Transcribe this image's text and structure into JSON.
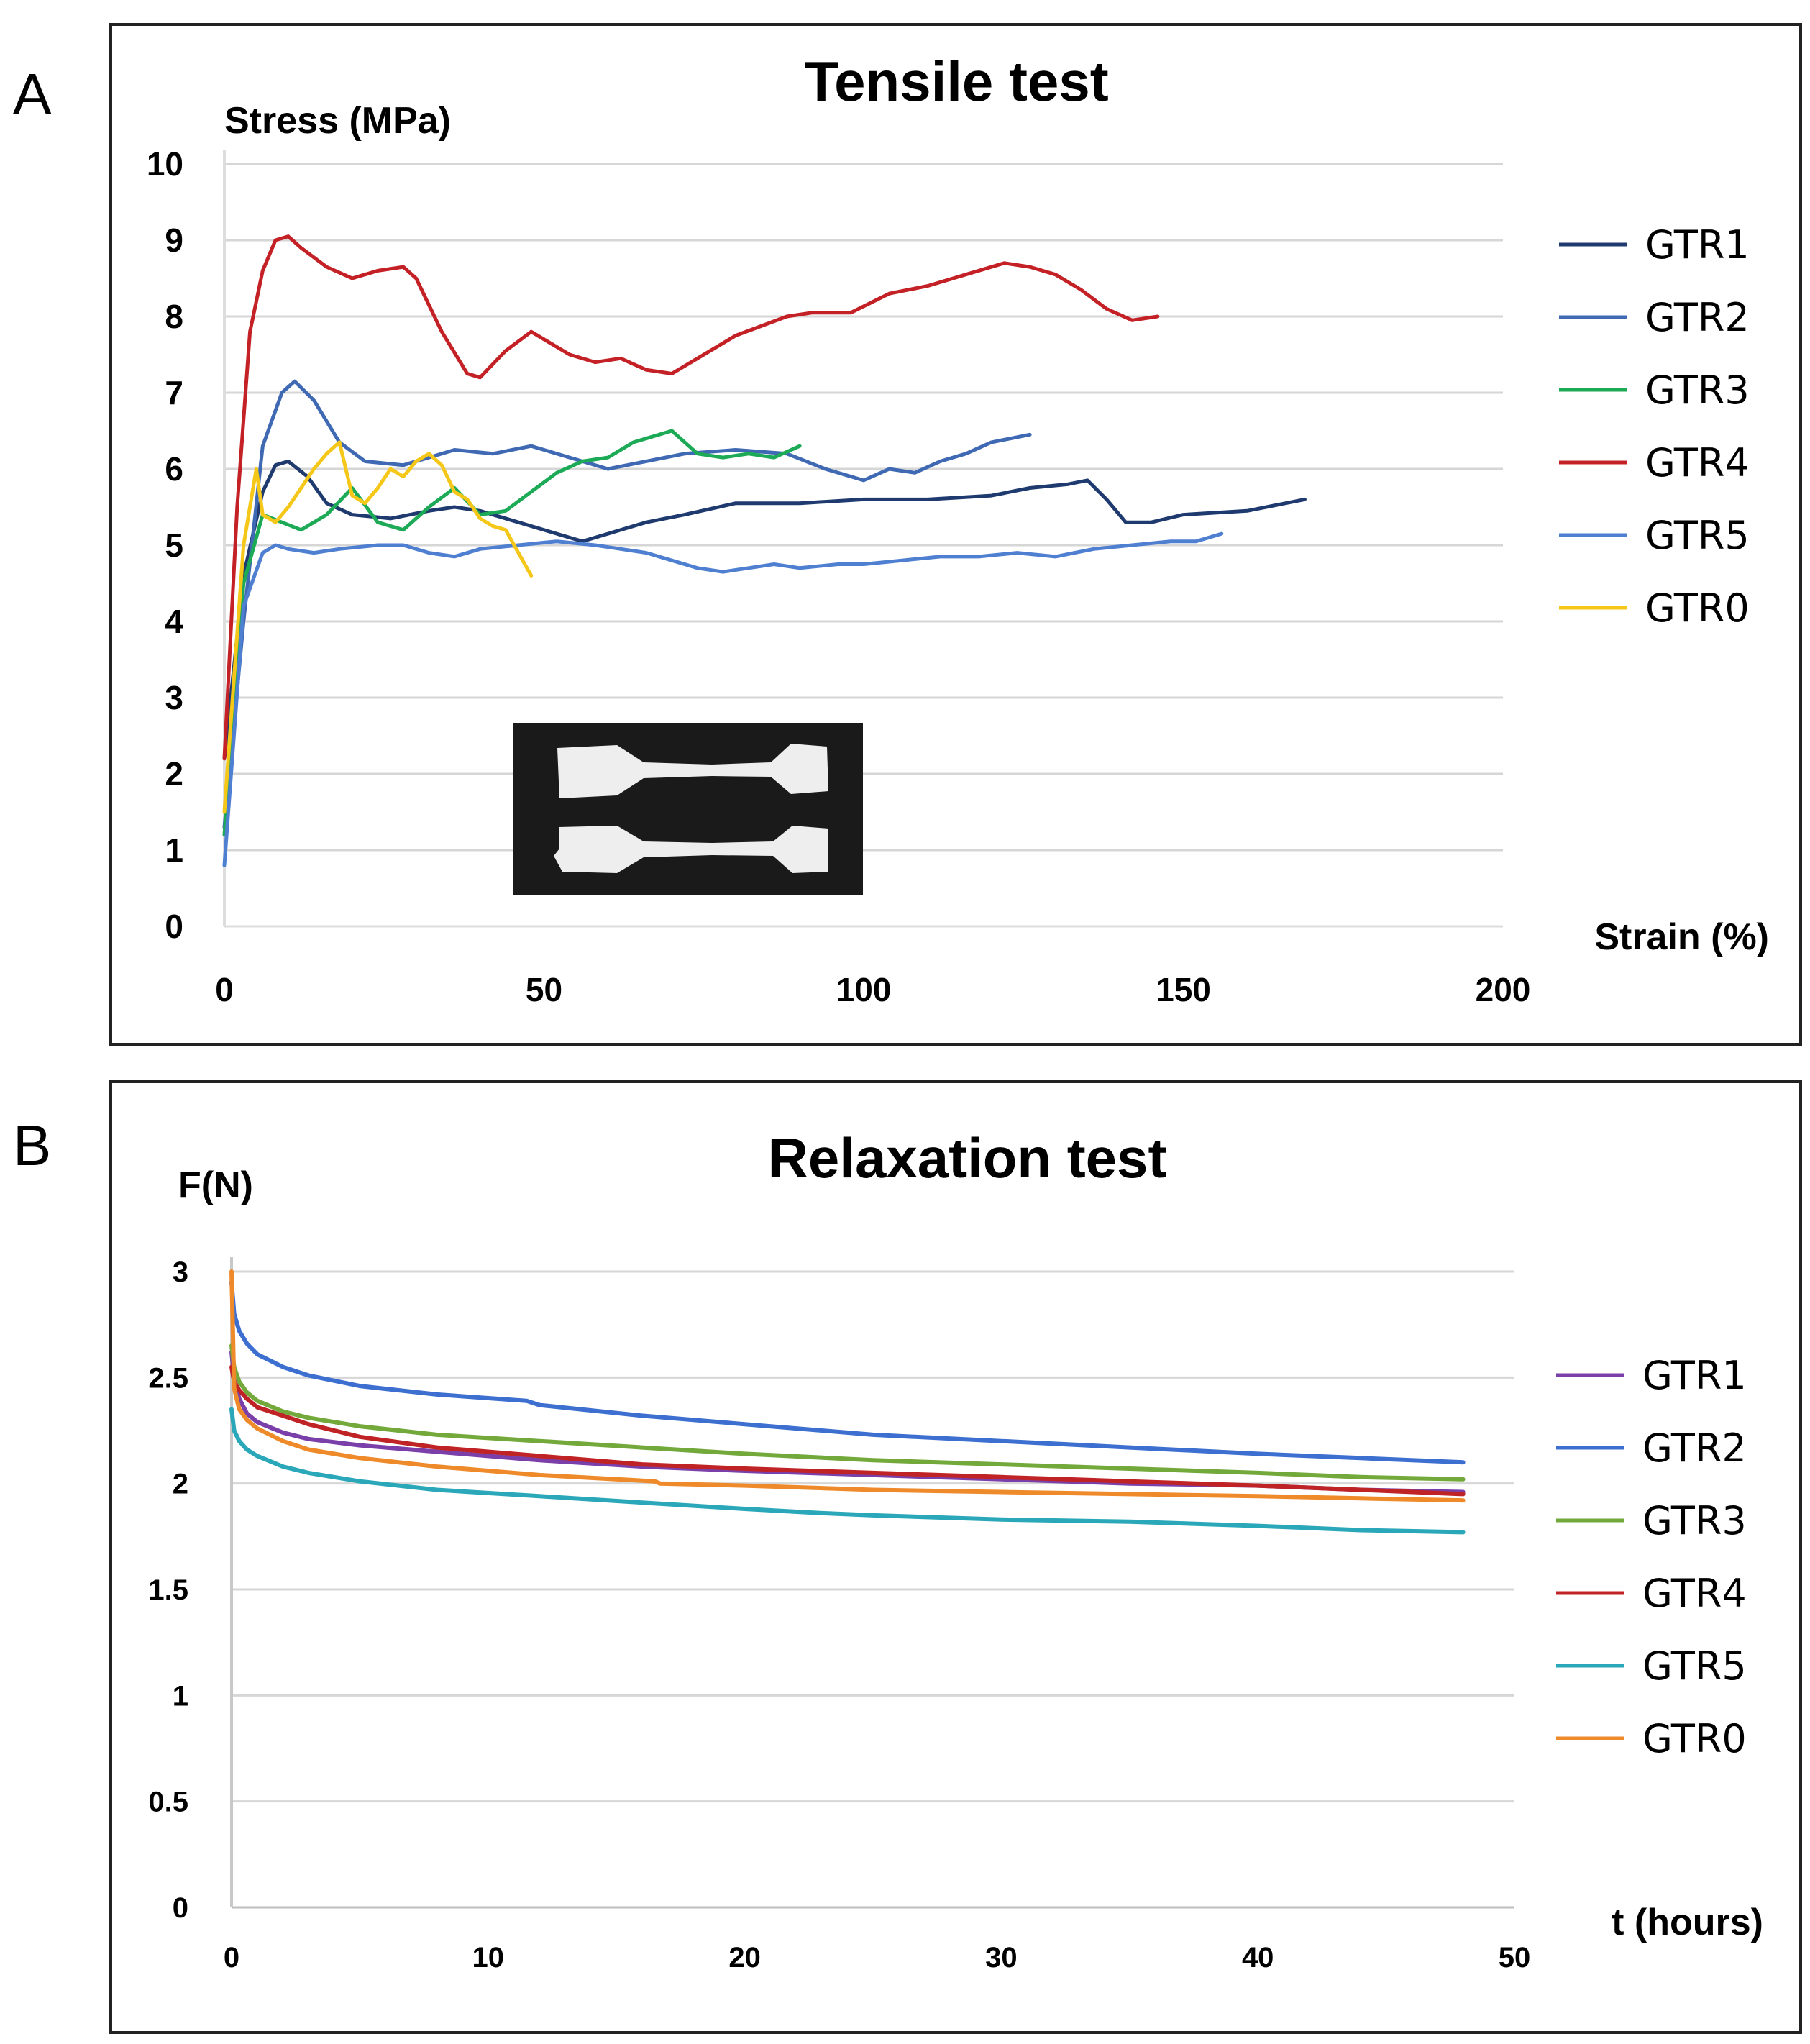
{
  "chart_data": [
    {
      "panel": "A",
      "type": "line",
      "title": "Tensile test",
      "xlabel": "Strain (%)",
      "ylabel": "Stress (MPa)",
      "xlim": [
        0,
        200
      ],
      "ylim": [
        0,
        10
      ],
      "xticks": [
        0,
        50,
        100,
        150,
        200
      ],
      "yticks": [
        0,
        1,
        2,
        3,
        4,
        5,
        6,
        7,
        8,
        9,
        10
      ],
      "grid": true,
      "legend": "right",
      "inset": "photo of two dog-bone tensile specimens",
      "series": [
        {
          "name": "GTR1",
          "color": "#1f3a6e",
          "x": [
            0,
            3,
            6,
            8,
            10,
            13,
            16,
            20,
            26,
            32,
            36,
            40,
            46,
            52,
            56,
            60,
            66,
            72,
            80,
            90,
            100,
            110,
            120,
            126,
            132,
            135,
            138,
            141,
            145,
            150,
            160,
            169
          ],
          "y": [
            2.2,
            4.6,
            5.7,
            6.05,
            6.1,
            5.9,
            5.55,
            5.4,
            5.35,
            5.45,
            5.5,
            5.45,
            5.3,
            5.15,
            5.05,
            5.15,
            5.3,
            5.4,
            5.55,
            5.55,
            5.6,
            5.6,
            5.65,
            5.75,
            5.8,
            5.85,
            5.6,
            5.3,
            5.3,
            5.4,
            5.45,
            5.6
          ]
        },
        {
          "name": "GTR2",
          "color": "#3f69b3",
          "x": [
            0,
            3,
            6,
            9,
            11,
            14,
            18,
            22,
            28,
            32,
            36,
            42,
            48,
            54,
            60,
            66,
            72,
            80,
            88,
            94,
            100,
            104,
            108,
            112,
            116,
            120,
            126
          ],
          "y": [
            1.3,
            4.0,
            6.3,
            7.0,
            7.15,
            6.9,
            6.35,
            6.1,
            6.05,
            6.15,
            6.25,
            6.2,
            6.3,
            6.15,
            6.0,
            6.1,
            6.2,
            6.25,
            6.2,
            6.0,
            5.85,
            6.0,
            5.95,
            6.1,
            6.2,
            6.35,
            6.45
          ]
        },
        {
          "name": "GTR3",
          "color": "#1daa57",
          "x": [
            0,
            3,
            6,
            9,
            12,
            16,
            20,
            24,
            28,
            32,
            36,
            40,
            44,
            48,
            52,
            56,
            60,
            64,
            68,
            70,
            74,
            78,
            82,
            86,
            90
          ],
          "y": [
            1.2,
            4.5,
            5.4,
            5.3,
            5.2,
            5.4,
            5.75,
            5.3,
            5.2,
            5.5,
            5.75,
            5.4,
            5.45,
            5.7,
            5.95,
            6.1,
            6.15,
            6.35,
            6.45,
            6.5,
            6.2,
            6.15,
            6.2,
            6.15,
            6.3
          ]
        },
        {
          "name": "GTR4",
          "color": "#c42126",
          "x": [
            0,
            2,
            4,
            6,
            8,
            10,
            12,
            16,
            20,
            24,
            28,
            30,
            34,
            38,
            40,
            44,
            48,
            54,
            58,
            62,
            66,
            70,
            74,
            80,
            88,
            92,
            98,
            104,
            110,
            116,
            122,
            126,
            130,
            134,
            138,
            142,
            146
          ],
          "y": [
            2.2,
            5.5,
            7.8,
            8.6,
            9.0,
            9.05,
            8.9,
            8.65,
            8.5,
            8.6,
            8.65,
            8.5,
            7.8,
            7.25,
            7.2,
            7.55,
            7.8,
            7.5,
            7.4,
            7.45,
            7.3,
            7.25,
            7.45,
            7.75,
            8.0,
            8.05,
            8.05,
            8.3,
            8.4,
            8.55,
            8.7,
            8.65,
            8.55,
            8.35,
            8.1,
            7.95,
            8.0
          ]
        },
        {
          "name": "GTR5",
          "color": "#4f7fd1",
          "x": [
            0,
            3,
            6,
            8,
            10,
            14,
            18,
            24,
            28,
            32,
            36,
            40,
            46,
            52,
            58,
            62,
            66,
            70,
            74,
            78,
            82,
            86,
            90,
            96,
            100,
            106,
            112,
            118,
            124,
            130,
            136,
            142,
            148,
            152,
            156
          ],
          "y": [
            0.8,
            4.2,
            4.9,
            5.0,
            4.95,
            4.9,
            4.95,
            5.0,
            5.0,
            4.9,
            4.85,
            4.95,
            5.0,
            5.05,
            5.0,
            4.95,
            4.9,
            4.8,
            4.7,
            4.65,
            4.7,
            4.75,
            4.7,
            4.75,
            4.75,
            4.8,
            4.85,
            4.85,
            4.9,
            4.85,
            4.95,
            5.0,
            5.05,
            5.05,
            5.15
          ]
        },
        {
          "name": "GTR0",
          "color": "#f5c718",
          "x": [
            0,
            3,
            5,
            6,
            8,
            10,
            12,
            14,
            16,
            18,
            20,
            22,
            24,
            26,
            28,
            30,
            32,
            34,
            36,
            38,
            40,
            42,
            44,
            46,
            48
          ],
          "y": [
            1.5,
            5.0,
            6.0,
            5.4,
            5.3,
            5.5,
            5.75,
            6.0,
            6.2,
            6.35,
            5.65,
            5.55,
            5.75,
            6.0,
            5.9,
            6.1,
            6.2,
            6.05,
            5.7,
            5.6,
            5.35,
            5.25,
            5.2,
            4.9,
            4.6
          ]
        }
      ]
    },
    {
      "panel": "B",
      "type": "line",
      "title": "Relaxation test",
      "xlabel": "t (hours)",
      "ylabel": "F(N)",
      "xlim": [
        0,
        50
      ],
      "ylim": [
        0,
        3
      ],
      "xticks": [
        0,
        10,
        20,
        30,
        40,
        50
      ],
      "yticks": [
        0,
        0.5,
        1,
        1.5,
        2,
        2.5,
        3
      ],
      "grid": true,
      "legend": "right",
      "series": [
        {
          "name": "GTR1",
          "color": "#7a3fa8",
          "x": [
            0,
            0.1,
            0.3,
            0.6,
            1,
            2,
            3,
            5,
            8,
            12,
            16,
            20,
            25,
            30,
            35,
            40,
            44,
            48
          ],
          "y": [
            2.62,
            2.5,
            2.4,
            2.33,
            2.29,
            2.24,
            2.21,
            2.18,
            2.15,
            2.11,
            2.08,
            2.06,
            2.04,
            2.02,
            2.0,
            1.99,
            1.97,
            1.96
          ]
        },
        {
          "name": "GTR2",
          "color": "#3c6fcf",
          "x": [
            0,
            0.1,
            0.3,
            0.6,
            1,
            2,
            3,
            5,
            8,
            11.5,
            12,
            16,
            20,
            25,
            30,
            35,
            40,
            44,
            48
          ],
          "y": [
            2.95,
            2.8,
            2.72,
            2.66,
            2.61,
            2.55,
            2.51,
            2.46,
            2.42,
            2.39,
            2.37,
            2.32,
            2.28,
            2.23,
            2.2,
            2.17,
            2.14,
            2.12,
            2.1
          ]
        },
        {
          "name": "GTR3",
          "color": "#72a93a",
          "x": [
            0,
            0.1,
            0.3,
            0.6,
            1,
            2,
            3,
            5,
            8,
            12,
            16,
            20,
            25,
            30,
            35,
            40,
            44,
            48
          ],
          "y": [
            2.65,
            2.55,
            2.48,
            2.43,
            2.39,
            2.34,
            2.31,
            2.27,
            2.23,
            2.2,
            2.17,
            2.14,
            2.11,
            2.09,
            2.07,
            2.05,
            2.03,
            2.02
          ]
        },
        {
          "name": "GTR4",
          "color": "#c02325",
          "x": [
            0,
            0.1,
            0.3,
            0.6,
            1,
            2,
            3,
            5,
            8,
            12,
            16,
            20,
            25,
            30,
            35,
            40,
            44,
            48
          ],
          "y": [
            2.55,
            2.48,
            2.44,
            2.4,
            2.36,
            2.32,
            2.28,
            2.22,
            2.17,
            2.13,
            2.09,
            2.07,
            2.05,
            2.03,
            2.01,
            1.99,
            1.97,
            1.95
          ]
        },
        {
          "name": "GTR5",
          "color": "#2aa7b8",
          "x": [
            0,
            0.1,
            0.3,
            0.6,
            1,
            2,
            3,
            5,
            8,
            12,
            16,
            20,
            23,
            25,
            30,
            35,
            40,
            44,
            48
          ],
          "y": [
            2.35,
            2.25,
            2.2,
            2.16,
            2.13,
            2.08,
            2.05,
            2.01,
            1.97,
            1.94,
            1.91,
            1.88,
            1.86,
            1.85,
            1.83,
            1.82,
            1.8,
            1.78,
            1.77
          ]
        },
        {
          "name": "GTR0",
          "color": "#ef8a2a",
          "x": [
            0,
            0.1,
            0.3,
            0.6,
            1,
            2,
            3,
            5,
            8,
            12,
            16.5,
            16.7,
            20,
            25,
            30,
            35,
            40,
            44,
            48
          ],
          "y": [
            3.0,
            2.45,
            2.35,
            2.3,
            2.26,
            2.2,
            2.16,
            2.12,
            2.08,
            2.04,
            2.01,
            2.0,
            1.99,
            1.97,
            1.96,
            1.95,
            1.94,
            1.93,
            1.92
          ]
        }
      ]
    }
  ]
}
